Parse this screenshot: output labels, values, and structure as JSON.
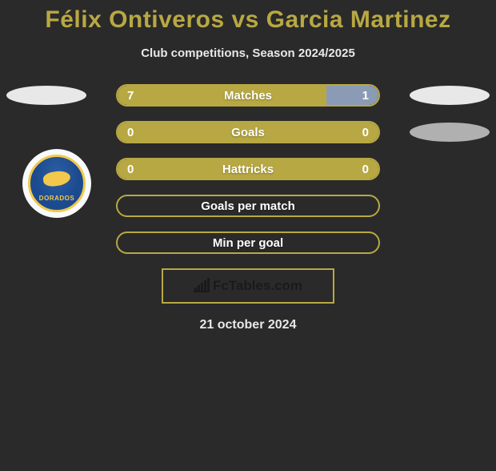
{
  "title": "Félix Ontiveros vs Garcia Martinez",
  "subtitle": "Club competitions, Season 2024/2025",
  "date": "21 october 2024",
  "watermark": "FcTables.com",
  "colors": {
    "accent": "#b8a843",
    "right_fill": "#8b9bb5",
    "background": "#2a2a2a",
    "text": "#ffffff",
    "ellipse_left": "#e8e8e8",
    "ellipse_right_1": "#e8e8e8",
    "ellipse_right_2": "#b0b0b0",
    "badge_ring": "#f2c94c",
    "badge_inner": "#1b4a8f",
    "badge_bg": "#f9fafb",
    "watermark_text": "#1a1a1a"
  },
  "layout": {
    "pill_width": 330,
    "pill_height": 28,
    "pill_radius": 14,
    "ellipse_w": 100,
    "ellipse_h": 24,
    "badge_d": 86
  },
  "rows": [
    {
      "label": "Matches",
      "left_value": "7",
      "right_value": "1",
      "left_pct": 80,
      "right_pct": 20,
      "show_left_ellipse": true,
      "show_right_ellipse": true,
      "fill_mode": "split"
    },
    {
      "label": "Goals",
      "left_value": "0",
      "right_value": "0",
      "left_pct": 100,
      "right_pct": 0,
      "show_left_ellipse": false,
      "show_right_ellipse": true,
      "fill_mode": "full"
    },
    {
      "label": "Hattricks",
      "left_value": "0",
      "right_value": "0",
      "left_pct": 100,
      "right_pct": 0,
      "show_left_ellipse": false,
      "show_right_ellipse": false,
      "fill_mode": "full"
    },
    {
      "label": "Goals per match",
      "left_value": "",
      "right_value": "",
      "left_pct": 0,
      "right_pct": 0,
      "show_left_ellipse": false,
      "show_right_ellipse": false,
      "fill_mode": "empty"
    },
    {
      "label": "Min per goal",
      "left_value": "",
      "right_value": "",
      "left_pct": 0,
      "right_pct": 0,
      "show_left_ellipse": false,
      "show_right_ellipse": false,
      "fill_mode": "empty"
    }
  ],
  "team_badge": {
    "name": "Dorados",
    "text": "DORADOS"
  }
}
